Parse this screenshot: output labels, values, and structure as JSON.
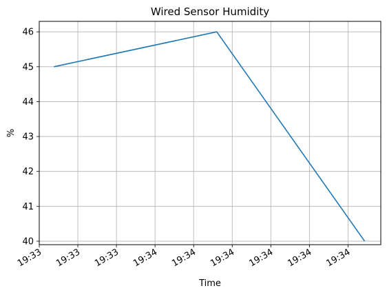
{
  "chart_data": {
    "type": "line",
    "title": "Wired Sensor Humidity",
    "xlabel": "Time",
    "ylabel": "%",
    "grid": true,
    "x_ticks": [
      "19:33",
      "19:33",
      "19:33",
      "19:34",
      "19:34",
      "19:34",
      "19:34",
      "19:34",
      "19:34"
    ],
    "y_ticks": [
      40,
      41,
      42,
      43,
      44,
      45,
      46
    ],
    "ylim": [
      39.9,
      46.3
    ],
    "series": [
      {
        "color": "#1f77b4",
        "points": [
          {
            "x": "19:33",
            "y": 45
          },
          {
            "x": "19:34",
            "y": 46
          },
          {
            "x": "19:34",
            "y": 40
          }
        ]
      }
    ]
  }
}
